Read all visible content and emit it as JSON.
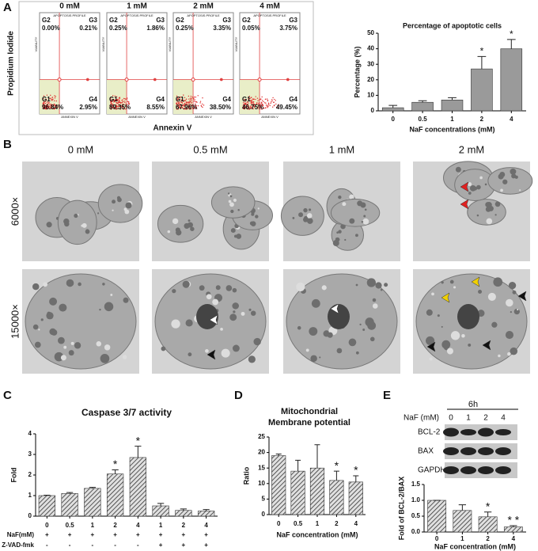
{
  "panels": [
    "A",
    "B",
    "C",
    "D",
    "E"
  ],
  "flow": {
    "ylabel": "Propidium Iodide",
    "xlabel": "Annexin V",
    "profile": "APOPTOSIS PROFILE",
    "viability": "VIABILITY",
    "annexin": "ANNEXIN V",
    "plots": [
      {
        "title": "0 mM",
        "G2": "0.00%",
        "G3": "0.21%",
        "G1": "96.84%",
        "G4": "2.95%"
      },
      {
        "title": "1 mM",
        "G2": "0.25%",
        "G3": "1.86%",
        "G1": "89.35%",
        "G4": "8.55%"
      },
      {
        "title": "2 mM",
        "G2": "0.25%",
        "G3": "3.35%",
        "G1": "67.96%",
        "G4": "38.50%"
      },
      {
        "title": "4 mM",
        "G2": "0.05%",
        "G3": "3.75%",
        "G1": "46.75%",
        "G4": "49.45%"
      }
    ],
    "quadrant_names": [
      "G1",
      "G2",
      "G3",
      "G4"
    ]
  },
  "tem": {
    "columns": [
      "0 mM",
      "0.5 mM",
      "1 mM",
      "2 mM"
    ],
    "rows": [
      "6000×",
      "15000×"
    ]
  },
  "blot": {
    "time": "6h",
    "label": "NaF (mM)",
    "lanes": [
      "0",
      "1",
      "2",
      "4"
    ],
    "proteins": [
      "BCL-2",
      "BAX",
      "GAPDH"
    ]
  },
  "chart_data": [
    {
      "type": "bar",
      "title": "Percentage of apoptotic cells",
      "xlabel": "NaF concentrations (mM)",
      "ylabel": "Percentage (%)",
      "categories": [
        "0",
        "0.5",
        "1",
        "2",
        "4"
      ],
      "values": [
        2,
        5.5,
        7,
        27,
        40
      ],
      "errors": [
        1.5,
        1,
        1.5,
        8,
        6
      ],
      "significance": [
        null,
        null,
        null,
        "*",
        "*"
      ],
      "ylim": [
        0,
        50
      ],
      "yticks": [
        0,
        10,
        20,
        30,
        40,
        50
      ],
      "color": "#9a9a9a"
    },
    {
      "type": "bar",
      "title": "Caspase 3/7 activity",
      "ylabel": "Fold",
      "categories": [
        "0",
        "0.5",
        "1",
        "2",
        "4",
        "1",
        "2",
        "4"
      ],
      "values": [
        1,
        1.1,
        1.35,
        2.05,
        2.85,
        0.5,
        0.28,
        0.25
      ],
      "errors": [
        0.02,
        0.05,
        0.05,
        0.2,
        0.55,
        0.12,
        0.07,
        0.07
      ],
      "significance": [
        null,
        null,
        null,
        "*",
        "*",
        null,
        null,
        null
      ],
      "row_labels": [
        "NaF(mM)",
        "Z-VAD-fmk"
      ],
      "naf": [
        "+",
        "+",
        "+",
        "+",
        "+",
        "+",
        "+",
        "+"
      ],
      "zvad": [
        "-",
        "-",
        "-",
        "-",
        "-",
        "+",
        "+",
        "+"
      ],
      "ylim": [
        0,
        4
      ],
      "yticks": [
        0,
        1,
        2,
        3,
        4
      ],
      "color": "#555555",
      "hatch": true
    },
    {
      "type": "bar",
      "title": [
        "Mitochondrial",
        "Membrane potential"
      ],
      "xlabel": "NaF concentration (mM)",
      "ylabel": "Ratio",
      "categories": [
        "0",
        "0.5",
        "1",
        "2",
        "4"
      ],
      "values": [
        19,
        14,
        15,
        11,
        10.5
      ],
      "errors": [
        0.5,
        3.5,
        7.5,
        3,
        2
      ],
      "significance": [
        null,
        null,
        null,
        "*",
        "*"
      ],
      "ylim": [
        0,
        25
      ],
      "yticks": [
        0,
        5,
        10,
        15,
        20,
        25
      ],
      "color": "#555555",
      "hatch": true
    },
    {
      "type": "bar",
      "xlabel": "NaF concentration (mM)",
      "ylabel": "Fold of BCL-2/BAX",
      "categories": [
        "0",
        "1",
        "2",
        "4"
      ],
      "values": [
        1,
        0.68,
        0.48,
        0.16
      ],
      "errors": [
        0,
        0.18,
        0.15,
        0.04
      ],
      "significance": [
        null,
        null,
        "*",
        "* *"
      ],
      "ylim": [
        0,
        1.5
      ],
      "yticks": [
        {
          "value": 0,
          "label": "0.0"
        },
        {
          "value": 0.5,
          "label": "0.5"
        },
        {
          "value": 1,
          "label": "1.0"
        },
        {
          "value": 1.5,
          "label": "1.5"
        }
      ],
      "color": "#555555",
      "hatch": true
    }
  ]
}
